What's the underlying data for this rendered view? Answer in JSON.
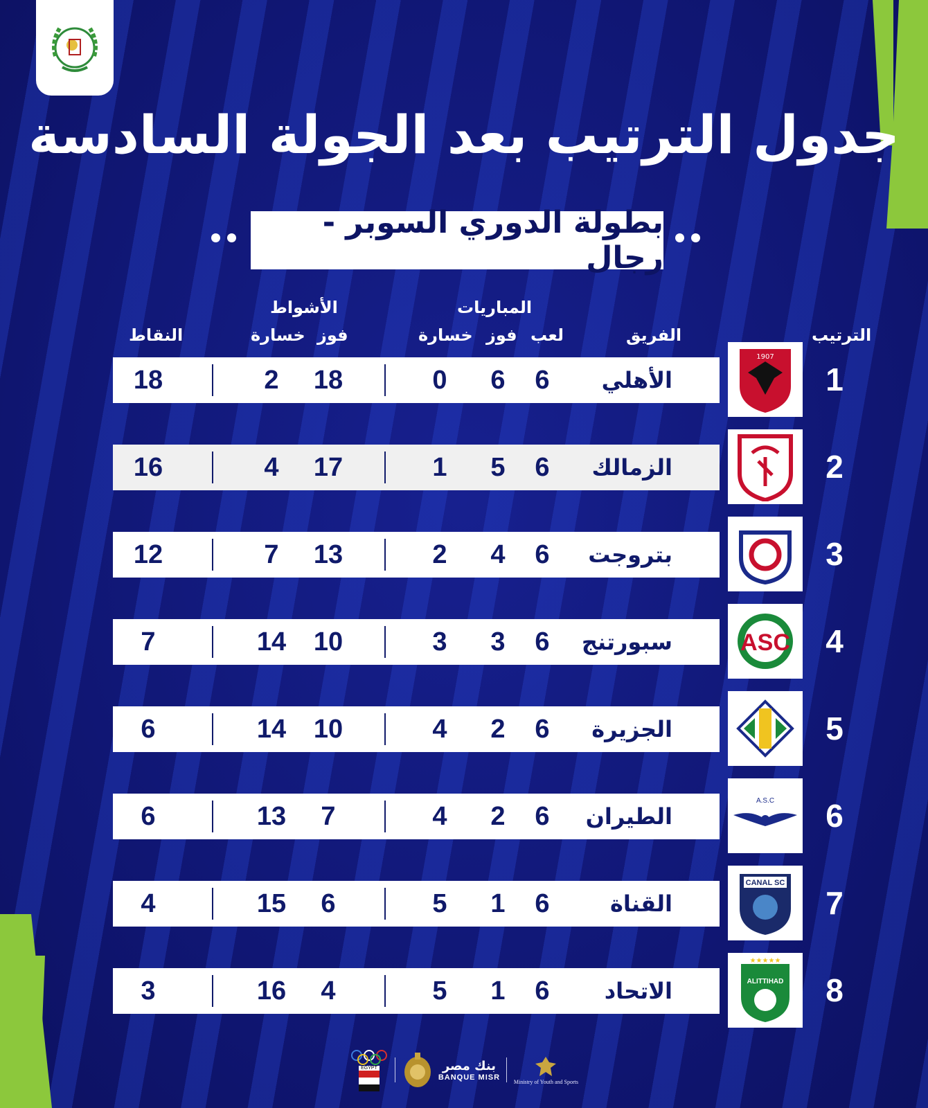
{
  "title": "جدول الترتيب بعد الجولة السادسة",
  "subtitle": "بطولة الدوري السوبر - رجال",
  "headers": {
    "rank": "الترتيب",
    "team": "الفريق",
    "matches_group": "المباريات",
    "played": "لعب",
    "won": "فوز",
    "lost": "خسارة",
    "sets_group": "الأشواط",
    "sets_won": "فوز",
    "sets_lost": "خسارة",
    "points": "النقاط"
  },
  "rows": [
    {
      "rank": "1",
      "team": "الأهلي",
      "played": "6",
      "won": "6",
      "lost": "0",
      "sets_won": "18",
      "sets_lost": "2",
      "points": "18",
      "crest": "al-ahly-crest"
    },
    {
      "rank": "2",
      "team": "الزمالك",
      "played": "6",
      "won": "5",
      "lost": "1",
      "sets_won": "17",
      "sets_lost": "4",
      "points": "16",
      "crest": "zamalek-crest"
    },
    {
      "rank": "3",
      "team": "بتروجت",
      "played": "6",
      "won": "4",
      "lost": "2",
      "sets_won": "13",
      "sets_lost": "7",
      "points": "12",
      "crest": "petrojet-crest"
    },
    {
      "rank": "4",
      "team": "سبورتنج",
      "played": "6",
      "won": "3",
      "lost": "3",
      "sets_won": "10",
      "sets_lost": "14",
      "points": "7",
      "crest": "sporting-crest"
    },
    {
      "rank": "5",
      "team": "الجزيرة",
      "played": "6",
      "won": "2",
      "lost": "4",
      "sets_won": "10",
      "sets_lost": "14",
      "points": "6",
      "crest": "gezira-crest"
    },
    {
      "rank": "6",
      "team": "الطيران",
      "played": "6",
      "won": "2",
      "lost": "4",
      "sets_won": "7",
      "sets_lost": "13",
      "points": "6",
      "crest": "tayaran-crest"
    },
    {
      "rank": "7",
      "team": "القناة",
      "played": "6",
      "won": "1",
      "lost": "5",
      "sets_won": "6",
      "sets_lost": "15",
      "points": "4",
      "crest": "canal-crest"
    },
    {
      "rank": "8",
      "team": "الاتحاد",
      "played": "6",
      "won": "1",
      "lost": "5",
      "sets_won": "4",
      "sets_lost": "16",
      "points": "3",
      "crest": "ittihad-crest"
    }
  ],
  "sponsors": {
    "olympic_label": "EGYPT",
    "bank_ar": "بنك مصر",
    "bank_en": "BANQUE MISR",
    "ministry_en": "Ministry of Youth and Sports"
  },
  "colors": {
    "background": "#141c86",
    "accent_green": "#8cc83c",
    "text_dark": "#101a6a"
  }
}
